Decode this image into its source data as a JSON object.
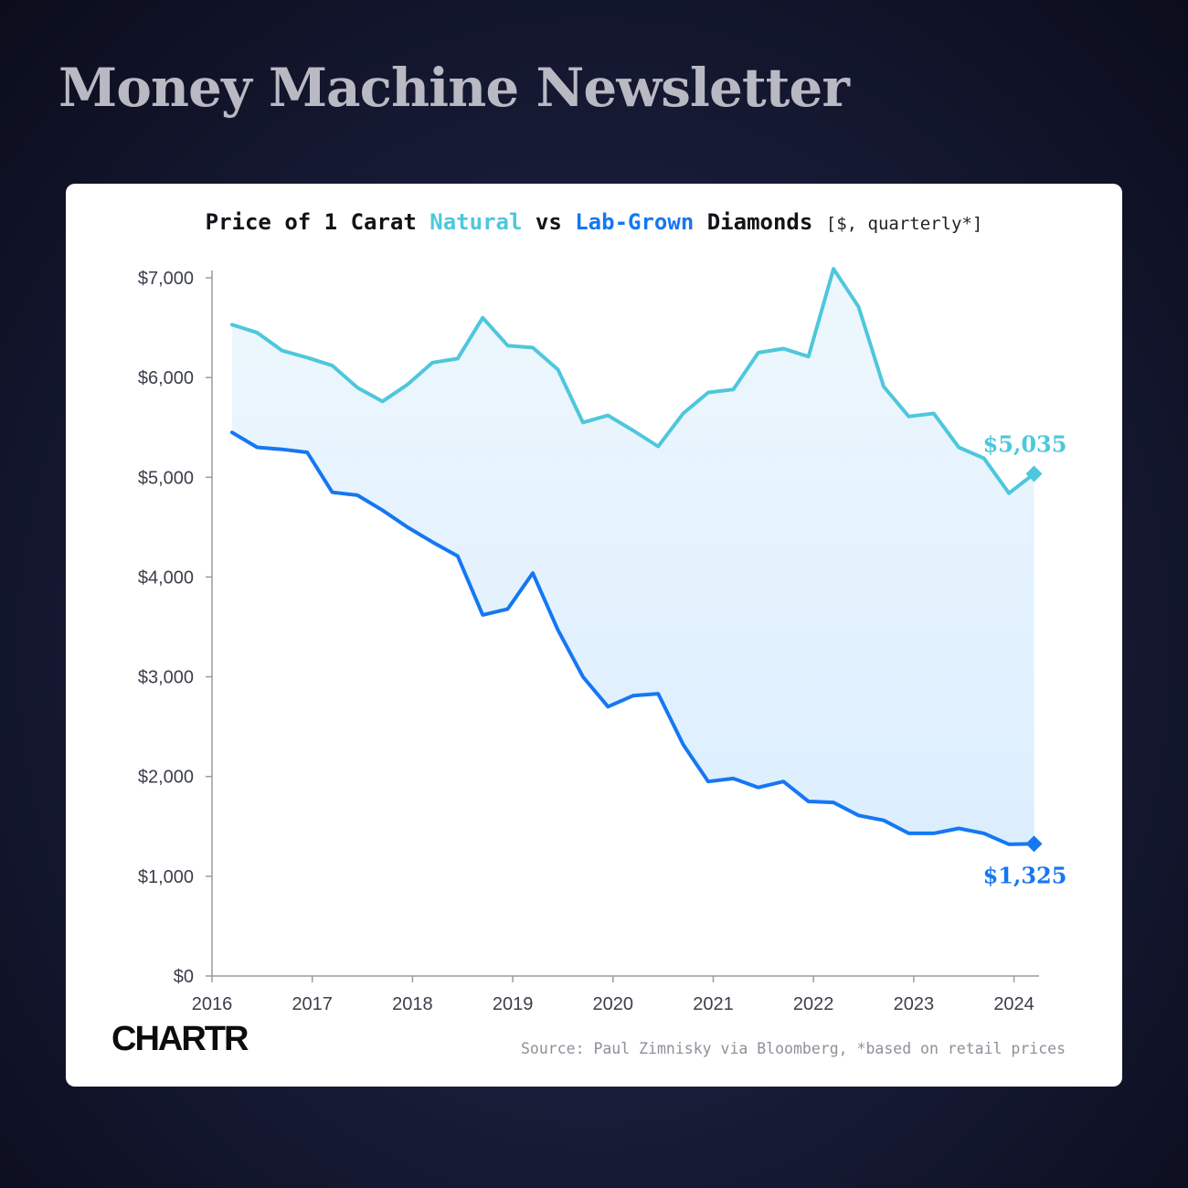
{
  "header": {
    "title": "Money Machine Newsletter"
  },
  "chart_title": {
    "prefix": "Price of 1 Carat ",
    "natural": "Natural",
    "vs": " vs ",
    "lab": "Lab-Grown",
    "suffix": " Diamonds ",
    "unit": "[$, quarterly*]"
  },
  "footer": {
    "logo": "CHARTR",
    "source": "Source: Paul Zimnisky via Bloomberg, *based on retail prices"
  },
  "colors": {
    "natural": "#4ec7dc",
    "lab": "#1677f2",
    "fill": "#dceefe"
  },
  "chart_data": {
    "type": "line",
    "title": "Price of 1 Carat Natural vs Lab-Grown Diamonds",
    "xlabel": "",
    "ylabel": "",
    "xlim": [
      2016,
      2024.25
    ],
    "ylim": [
      0,
      7000
    ],
    "y_ticks": [
      0,
      1000,
      2000,
      3000,
      4000,
      5000,
      6000,
      7000
    ],
    "y_tick_labels": [
      "$0",
      "$1,000",
      "$2,000",
      "$3,000",
      "$4,000",
      "$5,000",
      "$6,000",
      "$7,000"
    ],
    "x_ticks": [
      2016,
      2017,
      2018,
      2019,
      2020,
      2021,
      2022,
      2023,
      2024
    ],
    "x_tick_labels": [
      "2016",
      "2017",
      "2018",
      "2019",
      "2020",
      "2021",
      "2022",
      "2023",
      "2024"
    ],
    "grid": false,
    "x": [
      2016.2,
      2016.45,
      2016.7,
      2016.95,
      2017.2,
      2017.45,
      2017.7,
      2017.95,
      2018.2,
      2018.45,
      2018.7,
      2018.95,
      2019.2,
      2019.45,
      2019.7,
      2019.95,
      2020.2,
      2020.45,
      2020.7,
      2020.95,
      2021.2,
      2021.45,
      2021.7,
      2021.95,
      2022.2,
      2022.45,
      2022.7,
      2022.95,
      2023.2,
      2023.45,
      2023.7,
      2023.95,
      2024.2
    ],
    "series": [
      {
        "name": "Natural",
        "values": [
          6530,
          6450,
          6270,
          6200,
          6120,
          5900,
          5760,
          5930,
          6150,
          6190,
          6600,
          6320,
          6300,
          6080,
          5550,
          5620,
          5470,
          5310,
          5640,
          5850,
          5880,
          6250,
          6290,
          6210,
          7090,
          6710,
          5910,
          5610,
          5640,
          5300,
          5190,
          4840,
          5035
        ]
      },
      {
        "name": "Lab-Grown",
        "values": [
          5450,
          5300,
          5280,
          5250,
          4850,
          4820,
          4670,
          4500,
          4350,
          4210,
          3620,
          3680,
          4040,
          3470,
          3000,
          2700,
          2810,
          2830,
          2320,
          1950,
          1980,
          1890,
          1950,
          1750,
          1740,
          1610,
          1560,
          1430,
          1430,
          1480,
          1430,
          1320,
          1325
        ]
      }
    ],
    "annotations": [
      {
        "series": "Natural",
        "text": "$5,035"
      },
      {
        "series": "Lab-Grown",
        "text": "$1,325"
      }
    ]
  }
}
